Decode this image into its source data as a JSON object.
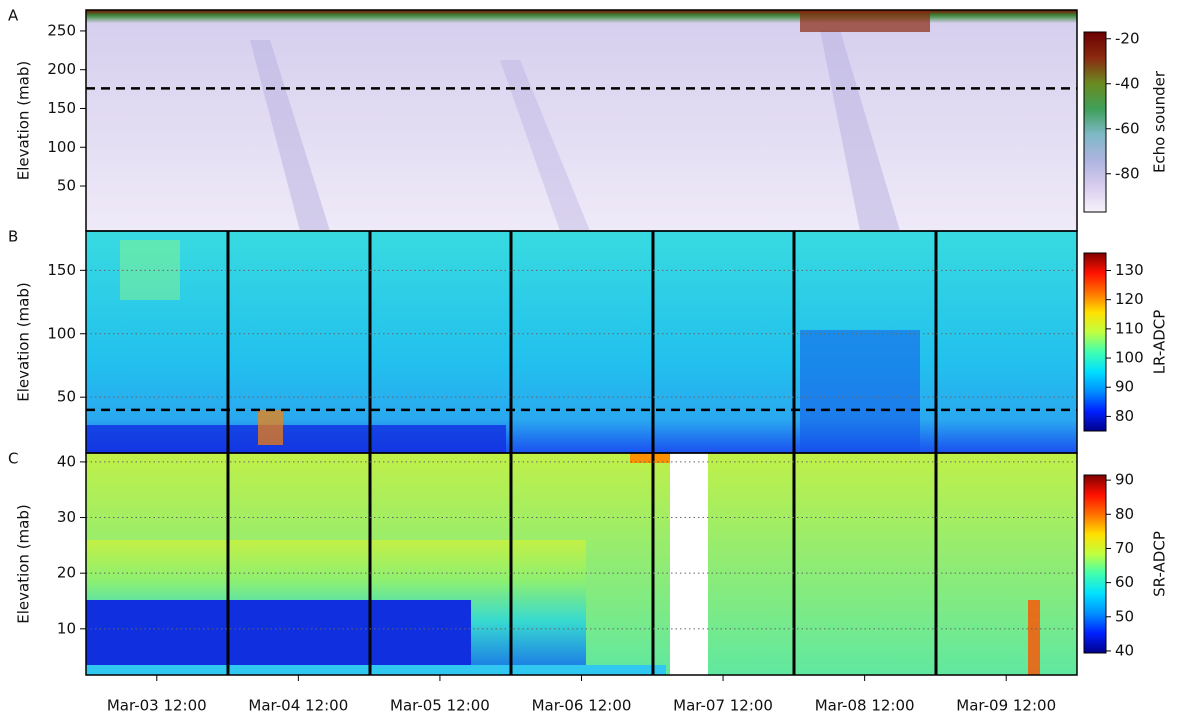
{
  "chart_data": [
    {
      "type": "heatmap",
      "panel_label": "A",
      "ylabel": "Elevation (mab)",
      "ylim": [
        -8,
        277
      ],
      "yticks": [
        50,
        100,
        150,
        200,
        250
      ],
      "ref_line": 176,
      "grid": false,
      "colorbar_label": "Echo sounder",
      "clim": [
        -97,
        -17
      ],
      "cticks": [
        -80,
        -60,
        -40,
        -20
      ],
      "colormap": [
        "#f7f2fb",
        "#d8cdef",
        "#aeb4df",
        "#7fb8c8",
        "#3fa05a",
        "#6a8a20",
        "#8b2a10",
        "#6b0000"
      ]
    },
    {
      "type": "heatmap",
      "panel_label": "B",
      "ylabel": "Elevation (mab)",
      "ylim": [
        6,
        181
      ],
      "yticks": [
        50,
        100,
        150
      ],
      "ref_line": 40,
      "grid": true,
      "colorbar_label": "LR-ADCP",
      "clim": [
        75,
        136
      ],
      "cticks": [
        80,
        90,
        100,
        110,
        120,
        130
      ],
      "colormap": [
        "#00008b",
        "#0020ff",
        "#0090ff",
        "#00e0ff",
        "#40ffb0",
        "#c0ff40",
        "#ffe000",
        "#ff7000",
        "#ff1000",
        "#800000"
      ]
    },
    {
      "type": "heatmap",
      "panel_label": "C",
      "ylabel": "Elevation (mab)",
      "ylim": [
        1.7,
        41.6
      ],
      "yticks": [
        10,
        20,
        30,
        40
      ],
      "grid": true,
      "colorbar_label": "SR-ADCP",
      "clim": [
        39.4,
        91.5
      ],
      "cticks": [
        40,
        50,
        60,
        70,
        80,
        90
      ],
      "colormap": [
        "#00008b",
        "#0020ff",
        "#0090ff",
        "#00e0ff",
        "#40ffb0",
        "#c0ff40",
        "#ffe000",
        "#ff7000",
        "#ff1000",
        "#800000"
      ],
      "categories": [
        "Mar-03 12:00",
        "Mar-04 12:00",
        "Mar-05 12:00",
        "Mar-06 12:00",
        "Mar-07 12:00",
        "Mar-08 12:00",
        "Mar-09 12:00"
      ]
    }
  ]
}
